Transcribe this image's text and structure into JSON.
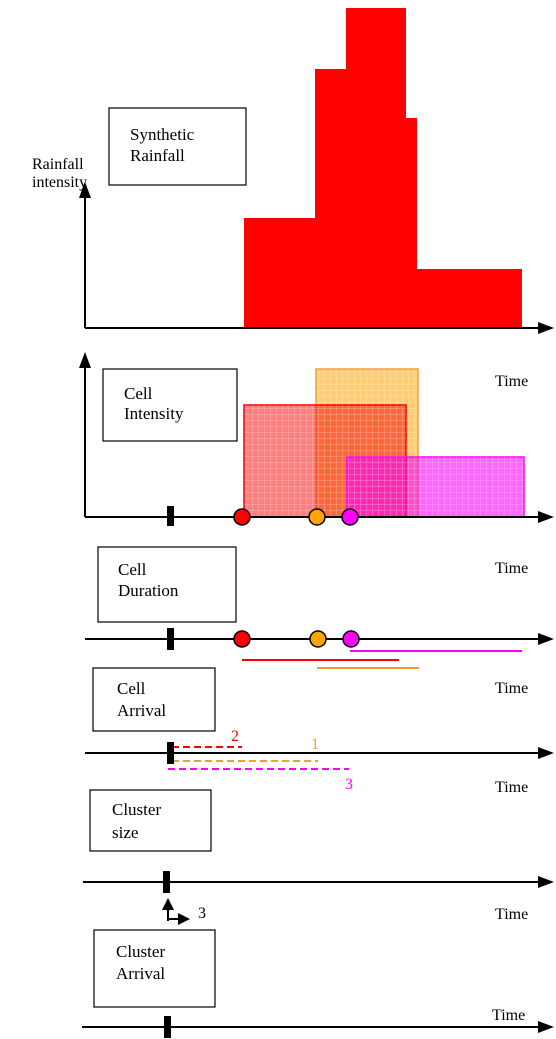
{
  "colors": {
    "rainfall": "#ff0000",
    "cell1": "#ffa500",
    "cell2": "#ff0000",
    "cell3": "#ff00ff",
    "orange_line": "#f0a030",
    "black": "#000000"
  },
  "labels": {
    "synthetic_line1": "Synthetic",
    "synthetic_line2": "Rainfall",
    "rain_axis_line1": "Rainfall",
    "rain_axis_line2": "intensity",
    "cell_intensity_line1": "Cell",
    "cell_intensity_line2": "Intensity",
    "cell_duration_line1": "Cell",
    "cell_duration_line2": "Duration",
    "cell_arrival_line1": "Cell",
    "cell_arrival_line2": "Arrival",
    "cluster_size_line1": "Cluster",
    "cluster_size_line2": "size",
    "cluster_arrival_line1": "Cluster",
    "cluster_arrival_line2": "Arrival",
    "time": "Time",
    "cell2_number": "2",
    "cell1_number": "1",
    "cell3_number": "3",
    "cluster_count": "3"
  },
  "icons": {
    "cell_marker": "filled-circle",
    "cluster_marker": "vertical-tick"
  }
}
